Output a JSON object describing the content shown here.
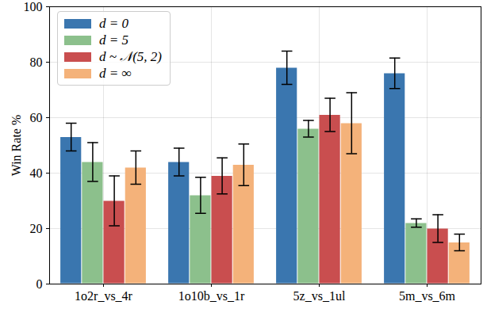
{
  "chart_data": {
    "type": "bar",
    "categories": [
      "1o2r_vs_4r",
      "1o10b_vs_1r",
      "5z_vs_1ul",
      "5m_vs_6m"
    ],
    "y_label": "Win Rate %",
    "series": [
      {
        "name": "d = 0",
        "color": "#3a76af",
        "values": [
          53,
          44,
          78,
          76
        ],
        "errors": [
          5,
          5,
          6,
          5.5
        ]
      },
      {
        "name": "d = 5",
        "color": "#8cc08c",
        "values": [
          44,
          32,
          56,
          22
        ],
        "errors": [
          7,
          6.5,
          3,
          1.5
        ]
      },
      {
        "name": "d ~ 𝒩(5, 2)",
        "color": "#c94e4f",
        "values": [
          30,
          39,
          61,
          20
        ],
        "errors": [
          9,
          6.5,
          6,
          5
        ]
      },
      {
        "name": "d = ∞",
        "color": "#f4b27a",
        "values": [
          42,
          43,
          58,
          15
        ],
        "errors": [
          6,
          7.5,
          11,
          3
        ]
      }
    ],
    "ylim": [
      0,
      100
    ],
    "yticks": [
      0,
      20,
      40,
      60,
      80,
      100
    ],
    "grid": true,
    "legend": "upper left"
  }
}
